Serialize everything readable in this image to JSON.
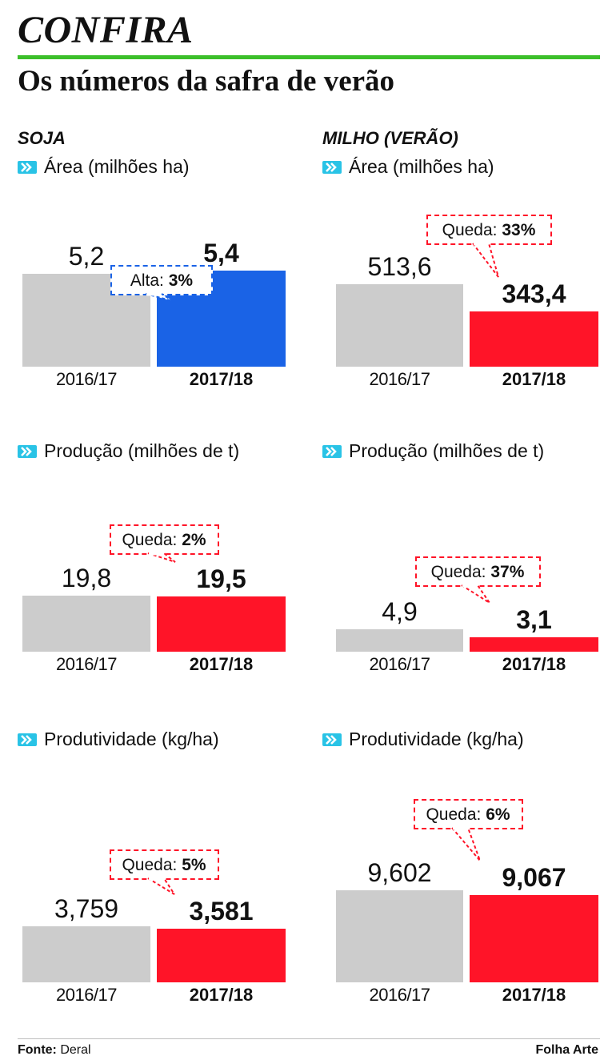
{
  "kicker": "CONFIRA",
  "headline": "Os números da safra de verão",
  "colors": {
    "accent_green": "#3cbf2a",
    "base_bar": "#cccccc",
    "increase": "#1a63e6",
    "decrease": "#ff1428",
    "icon_cyan": "#29c3e6"
  },
  "crops": [
    {
      "name": "SOJA",
      "metrics": [
        {
          "label": "Área (milhões ha)",
          "previous": {
            "year": "2016/17",
            "display": "5,2",
            "value": 5.2
          },
          "current": {
            "year": "2017/18",
            "display": "5,4",
            "value": 5.4
          },
          "change": {
            "word": "Alta:",
            "pct": "3%",
            "direction": "up"
          }
        },
        {
          "label": "Produção (milhões de t)",
          "previous": {
            "year": "2016/17",
            "display": "19,8",
            "value": 19.8
          },
          "current": {
            "year": "2017/18",
            "display": "19,5",
            "value": 19.5
          },
          "change": {
            "word": "Queda:",
            "pct": "2%",
            "direction": "down"
          }
        },
        {
          "label": "Produtividade (kg/ha)",
          "previous": {
            "year": "2016/17",
            "display": "3,759",
            "value": 3759
          },
          "current": {
            "year": "2017/18",
            "display": "3,581",
            "value": 3581
          },
          "change": {
            "word": "Queda:",
            "pct": "5%",
            "direction": "down"
          }
        }
      ]
    },
    {
      "name": "MILHO (VERÃO)",
      "metrics": [
        {
          "label": "Área (milhões ha)",
          "previous": {
            "year": "2016/17",
            "display": "513,6",
            "value": 513.6
          },
          "current": {
            "year": "2017/18",
            "display": "343,4",
            "value": 343.4
          },
          "change": {
            "word": "Queda:",
            "pct": "33%",
            "direction": "down"
          }
        },
        {
          "label": "Produção (milhões de t)",
          "previous": {
            "year": "2016/17",
            "display": "4,9",
            "value": 4.9
          },
          "current": {
            "year": "2017/18",
            "display": "3,1",
            "value": 3.1
          },
          "change": {
            "word": "Queda:",
            "pct": "37%",
            "direction": "down"
          }
        },
        {
          "label": "Produtividade (kg/ha)",
          "previous": {
            "year": "2016/17",
            "display": "9,602",
            "value": 9602
          },
          "current": {
            "year": "2017/18",
            "display": "9,067",
            "value": 9067
          },
          "change": {
            "word": "Queda:",
            "pct": "6%",
            "direction": "down"
          }
        }
      ]
    }
  ],
  "footer": {
    "source_label": "Fonte:",
    "source": "Deral",
    "credit": "Folha Arte"
  },
  "chart_data": [
    {
      "type": "bar",
      "title": "Área (milhões ha)",
      "group": "SOJA",
      "categories": [
        "2016/17",
        "2017/18"
      ],
      "values": [
        5.2,
        5.4
      ],
      "annotation": "Alta: 3%"
    },
    {
      "type": "bar",
      "title": "Produção (milhões de t)",
      "group": "SOJA",
      "categories": [
        "2016/17",
        "2017/18"
      ],
      "values": [
        19.8,
        19.5
      ],
      "annotation": "Queda: 2%"
    },
    {
      "type": "bar",
      "title": "Produtividade (kg/ha)",
      "group": "SOJA",
      "categories": [
        "2016/17",
        "2017/18"
      ],
      "values": [
        3759,
        3581
      ],
      "annotation": "Queda: 5%"
    },
    {
      "type": "bar",
      "title": "Área (milhões ha)",
      "group": "MILHO (VERÃO)",
      "categories": [
        "2016/17",
        "2017/18"
      ],
      "values": [
        513.6,
        343.4
      ],
      "annotation": "Queda: 33%"
    },
    {
      "type": "bar",
      "title": "Produção (milhões de t)",
      "group": "MILHO (VERÃO)",
      "categories": [
        "2016/17",
        "2017/18"
      ],
      "values": [
        4.9,
        3.1
      ],
      "annotation": "Queda: 37%"
    },
    {
      "type": "bar",
      "title": "Produtividade (kg/ha)",
      "group": "MILHO (VERÃO)",
      "categories": [
        "2016/17",
        "2017/18"
      ],
      "values": [
        9602,
        9067
      ],
      "annotation": "Queda: 6%"
    }
  ]
}
